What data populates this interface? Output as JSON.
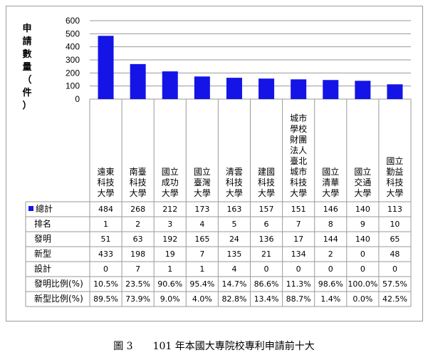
{
  "chart_data": {
    "type": "bar",
    "ylabel": "申請數量(件)",
    "ylabel_chars": [
      "申",
      "請",
      "數",
      "量",
      "（",
      "件",
      "）"
    ],
    "yticks": [
      0,
      100,
      200,
      300,
      400,
      500,
      600
    ],
    "ylim": [
      0,
      600
    ],
    "grid": true,
    "bar_color": "#1414e6",
    "categories": [
      "遠東科技大學",
      "南臺科技大學",
      "國立成功大學",
      "國立臺灣大學",
      "清雲科技大學",
      "建國科技大學",
      "城市學校財團法人臺北城市科技大學",
      "國立清華大學",
      "國立交通大學",
      "國立勤益科技大學"
    ],
    "series": [
      {
        "name": "總計",
        "values": [
          484,
          268,
          212,
          173,
          163,
          157,
          151,
          146,
          140,
          113
        ]
      }
    ]
  },
  "table": {
    "rows": [
      {
        "label": "總計",
        "legend": true,
        "values": [
          "484",
          "268",
          "212",
          "173",
          "163",
          "157",
          "151",
          "146",
          "140",
          "113"
        ]
      },
      {
        "label": "排名",
        "values": [
          "1",
          "2",
          "3",
          "4",
          "5",
          "6",
          "7",
          "8",
          "9",
          "10"
        ]
      },
      {
        "label": "發明",
        "values": [
          "51",
          "63",
          "192",
          "165",
          "24",
          "136",
          "17",
          "144",
          "140",
          "65"
        ]
      },
      {
        "label": "新型",
        "values": [
          "433",
          "198",
          "19",
          "7",
          "135",
          "21",
          "134",
          "2",
          "0",
          "48"
        ]
      },
      {
        "label": "設計",
        "values": [
          "0",
          "7",
          "1",
          "1",
          "4",
          "0",
          "0",
          "0",
          "0",
          "0"
        ]
      },
      {
        "label": "發明比例(%)",
        "values": [
          "10.5%",
          "23.5%",
          "90.6%",
          "95.4%",
          "14.7%",
          "86.6%",
          "11.3%",
          "98.6%",
          "100.0%",
          "57.5%"
        ]
      },
      {
        "label": "新型比例(%)",
        "values": [
          "89.5%",
          "73.9%",
          "9.0%",
          "4.0%",
          "82.8%",
          "13.4%",
          "88.7%",
          "1.4%",
          "0.0%",
          "42.5%"
        ]
      }
    ]
  },
  "caption": {
    "number": "圖 3",
    "text": "101 年本國大專院校專利申請前十大"
  }
}
